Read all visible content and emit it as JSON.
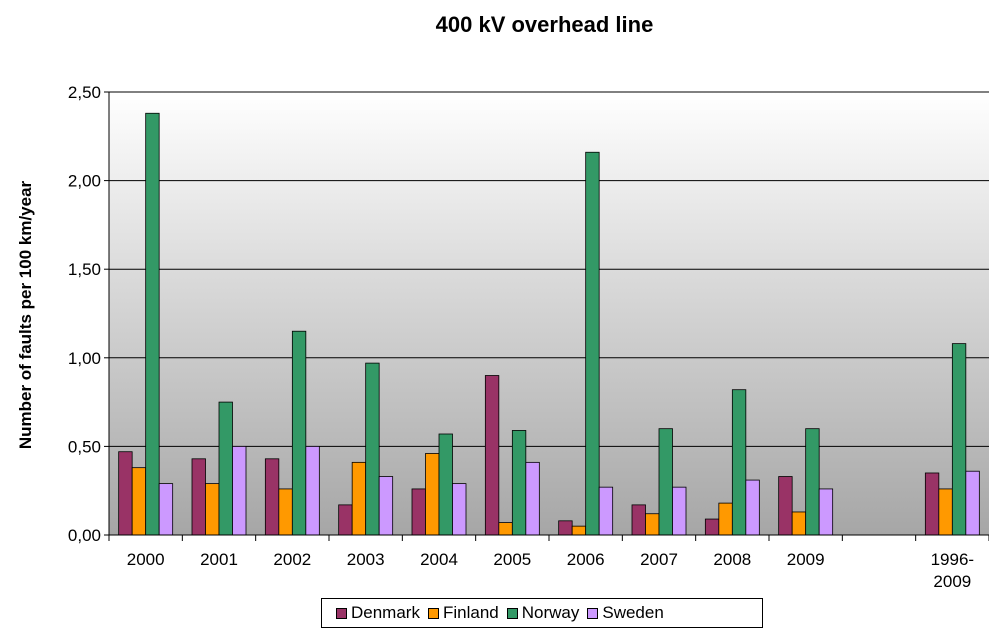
{
  "chart_data": {
    "type": "bar",
    "title": "400 kV overhead line",
    "xlabel": "",
    "ylabel": "Number of faults per 100 km/year",
    "ylim": [
      0,
      2.5
    ],
    "yticks": [
      "0,00",
      "0,50",
      "1,00",
      "1,50",
      "2,00",
      "2,50"
    ],
    "categories": [
      "2000",
      "2001",
      "2002",
      "2003",
      "2004",
      "2005",
      "2006",
      "2007",
      "2008",
      "2009",
      "",
      "1996-2009"
    ],
    "category_labels": [
      [
        "2000"
      ],
      [
        "2001"
      ],
      [
        "2002"
      ],
      [
        "2003"
      ],
      [
        "2004"
      ],
      [
        "2005"
      ],
      [
        "2006"
      ],
      [
        "2007"
      ],
      [
        "2008"
      ],
      [
        "2009"
      ],
      [
        ""
      ],
      [
        "1996-",
        "2009"
      ]
    ],
    "series": [
      {
        "name": "Denmark",
        "color": "#993366",
        "values": [
          0.47,
          0.43,
          0.43,
          0.17,
          0.26,
          0.9,
          0.08,
          0.17,
          0.09,
          0.33,
          null,
          0.35
        ]
      },
      {
        "name": "Finland",
        "color": "#ff9900",
        "values": [
          0.38,
          0.29,
          0.26,
          0.41,
          0.46,
          0.07,
          0.05,
          0.12,
          0.18,
          0.13,
          null,
          0.26
        ]
      },
      {
        "name": "Norway",
        "color": "#339966",
        "values": [
          2.38,
          0.75,
          1.15,
          0.97,
          0.57,
          0.59,
          2.16,
          0.6,
          0.82,
          0.6,
          null,
          1.08
        ]
      },
      {
        "name": "Sweden",
        "color": "#cc99ff",
        "values": [
          0.29,
          0.5,
          0.5,
          0.33,
          0.29,
          0.41,
          0.27,
          0.27,
          0.31,
          0.26,
          null,
          0.36
        ]
      }
    ],
    "grid": true,
    "legend_position": "bottom"
  }
}
